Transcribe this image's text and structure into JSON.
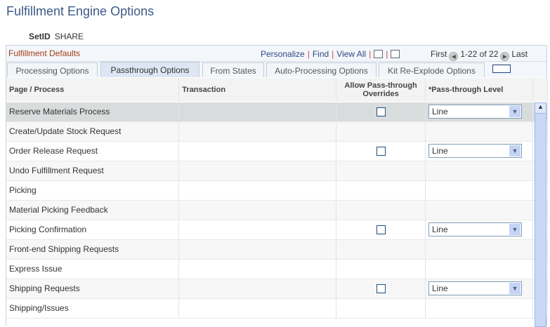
{
  "page_title": "Fulfillment Engine Options",
  "setid": {
    "label": "SetID",
    "value": "SHARE"
  },
  "grid": {
    "title": "Fulfillment Defaults",
    "nav": {
      "personalize": "Personalize",
      "find": "Find",
      "view_all": "View All",
      "first": "First",
      "range": "1-22 of 22",
      "last": "Last"
    },
    "tabs": [
      {
        "label": "Processing Options",
        "active": false
      },
      {
        "label": "Passthrough Options",
        "active": true
      },
      {
        "label": "From States",
        "active": false
      },
      {
        "label": "Auto-Processing Options",
        "active": false
      },
      {
        "label": "Kit Re-Explode Options",
        "active": false
      }
    ],
    "columns": [
      "Page / Process",
      "Transaction",
      "Allow Pass-through Overrides",
      "*Pass-through Level"
    ],
    "rows": [
      {
        "page": "Reserve Materials Process",
        "transaction": "",
        "override": false,
        "level": "Line"
      },
      {
        "page": "Create/Update Stock Request",
        "transaction": ""
      },
      {
        "page": "Order Release Request",
        "transaction": "",
        "override": false,
        "level": "Line"
      },
      {
        "page": "Undo Fulfillment Request",
        "transaction": ""
      },
      {
        "page": "Picking",
        "transaction": ""
      },
      {
        "page": "Material Picking Feedback",
        "transaction": ""
      },
      {
        "page": "Picking Confirmation",
        "transaction": "",
        "override": false,
        "level": "Line"
      },
      {
        "page": "Front-end Shipping Requests",
        "transaction": ""
      },
      {
        "page": "Express Issue",
        "transaction": ""
      },
      {
        "page": "Shipping Requests",
        "transaction": "",
        "override": false,
        "level": "Line"
      },
      {
        "page": "Shipping/Issues",
        "transaction": ""
      }
    ]
  }
}
